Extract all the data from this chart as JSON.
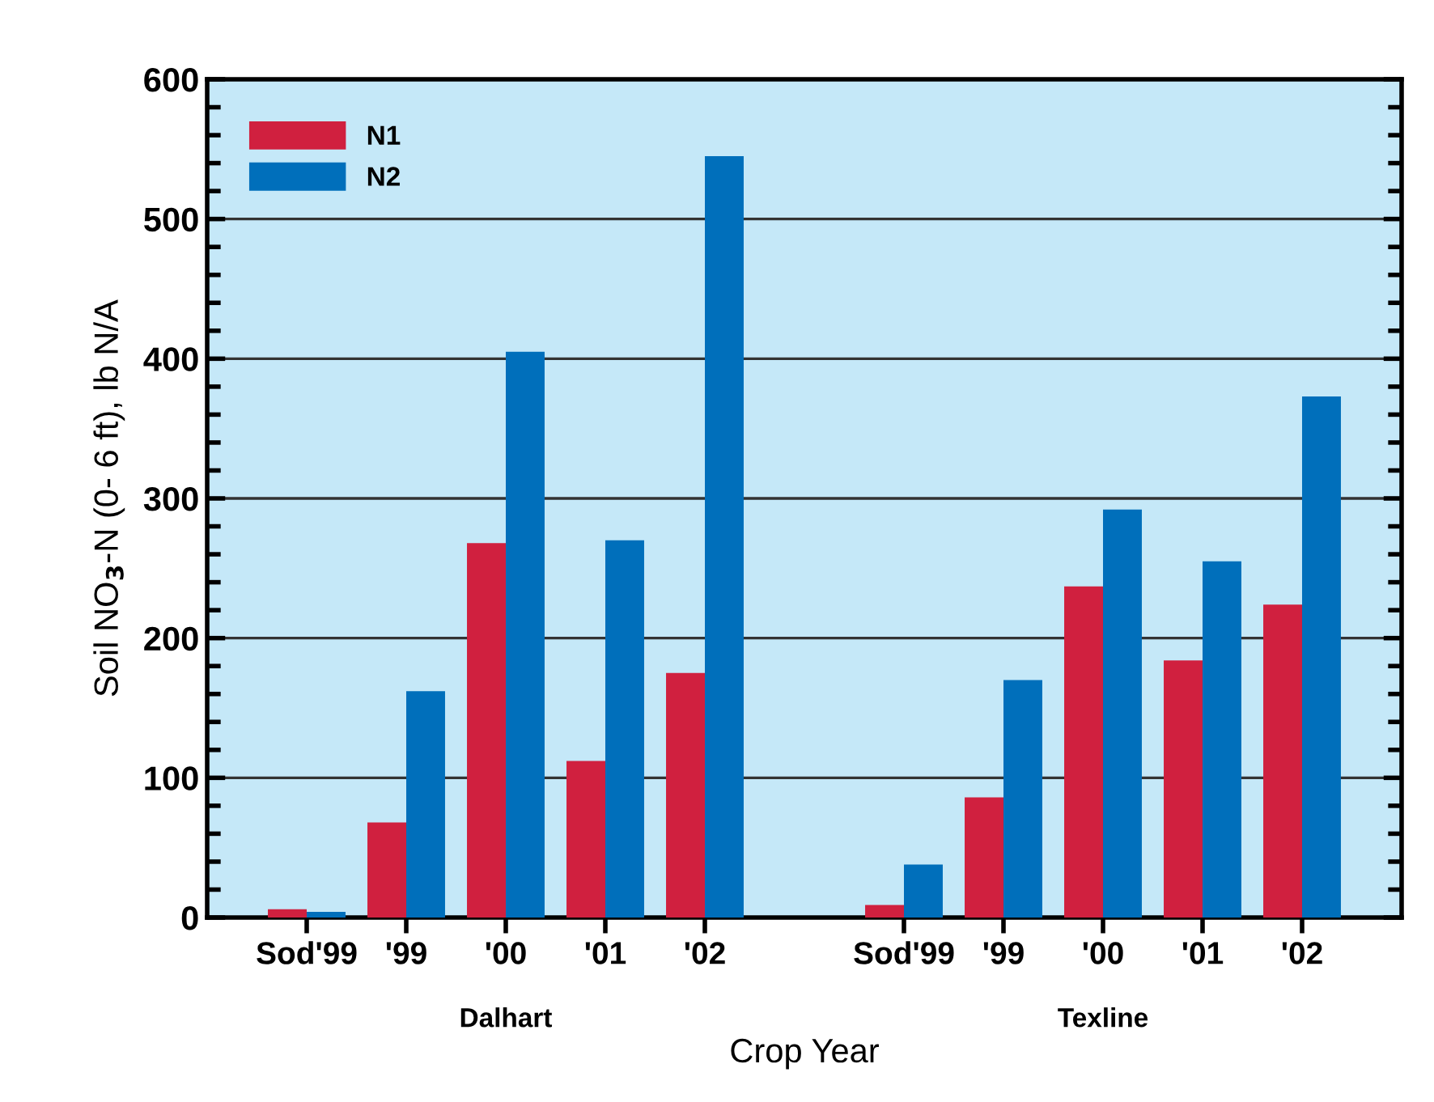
{
  "chart_data": {
    "type": "bar",
    "xlabel": "Crop Year",
    "ylabel": "Soil NO$_{3}$-N (0- 6 ft), lb N/A",
    "categories": [
      "Sod'99",
      "'99",
      "'00",
      "'01",
      "'02",
      "Sod'99",
      "'99",
      "'00",
      "'01",
      "'02"
    ],
    "series": [
      {
        "name": "N1",
        "color": "#d0203f",
        "values": [
          6,
          68,
          268,
          112,
          175,
          9,
          86,
          237,
          184,
          224
        ]
      },
      {
        "name": "N2",
        "color": "#006fbb",
        "values": [
          4,
          162,
          405,
          270,
          545,
          38,
          170,
          292,
          255,
          373
        ]
      }
    ],
    "annotations": [
      "Dalhart",
      "Texline"
    ],
    "ylim": [
      0,
      600
    ],
    "yticks": [
      0,
      100,
      200,
      300,
      400,
      500,
      600
    ],
    "grid": "y",
    "legend": "top left"
  }
}
